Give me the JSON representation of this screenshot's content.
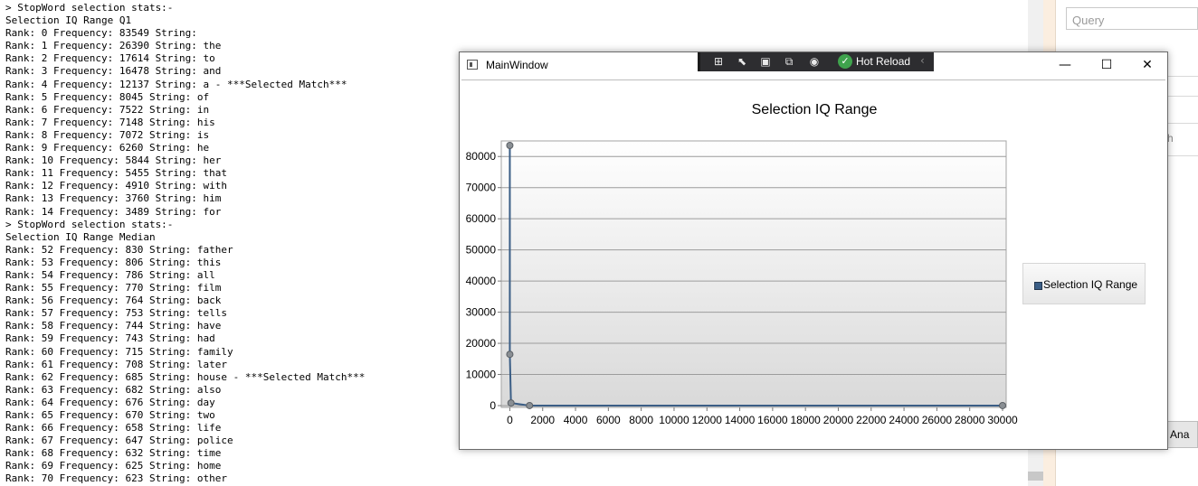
{
  "console": {
    "lines": [
      "> StopWord selection stats:-",
      "Selection IQ Range Q1",
      "Rank: 0 Frequency: 83549 String: ",
      "Rank: 1 Frequency: 26390 String: the",
      "Rank: 2 Frequency: 17614 String: to",
      "Rank: 3 Frequency: 16478 String: and",
      "Rank: 4 Frequency: 12137 String: a - ***Selected Match***",
      "Rank: 5 Frequency: 8045 String: of",
      "Rank: 6 Frequency: 7522 String: in",
      "Rank: 7 Frequency: 7148 String: his",
      "Rank: 8 Frequency: 7072 String: is",
      "Rank: 9 Frequency: 6260 String: he",
      "Rank: 10 Frequency: 5844 String: her",
      "Rank: 11 Frequency: 5455 String: that",
      "Rank: 12 Frequency: 4910 String: with",
      "Rank: 13 Frequency: 3760 String: him",
      "Rank: 14 Frequency: 3489 String: for",
      "> StopWord selection stats:-",
      "Selection IQ Range Median",
      "Rank: 52 Frequency: 830 String: father",
      "Rank: 53 Frequency: 806 String: this",
      "Rank: 54 Frequency: 786 String: all",
      "Rank: 55 Frequency: 770 String: film",
      "Rank: 56 Frequency: 764 String: back",
      "Rank: 57 Frequency: 753 String: tells",
      "Rank: 58 Frequency: 744 String: have",
      "Rank: 59 Frequency: 743 String: had",
      "Rank: 60 Frequency: 715 String: family",
      "Rank: 61 Frequency: 708 String: later",
      "Rank: 62 Frequency: 685 String: house - ***Selected Match***",
      "Rank: 63 Frequency: 682 String: also",
      "Rank: 64 Frequency: 676 String: day",
      "Rank: 65 Frequency: 670 String: two",
      "Rank: 66 Frequency: 658 String: life",
      "Rank: 67 Frequency: 647 String: police",
      "Rank: 68 Frequency: 632 String: time",
      "Rank: 69 Frequency: 625 String: home",
      "Rank: 70 Frequency: 623 String: other"
    ]
  },
  "background_app": {
    "query_placeholder": "Query",
    "fragment_1": "h",
    "button_fragment": "on Ana"
  },
  "window": {
    "title": "MainWindow",
    "hot_reload_label": "Hot Reload",
    "minimize_glyph": "—",
    "maximize_glyph": "☐",
    "close_glyph": "✕"
  },
  "chart_data": {
    "type": "line",
    "title": "Selection IQ Range",
    "xlabel": "",
    "ylabel": "",
    "xlim": [
      -300,
      30000
    ],
    "ylim": [
      0,
      85000
    ],
    "x_ticks": [
      0,
      2000,
      4000,
      6000,
      8000,
      10000,
      12000,
      14000,
      16000,
      18000,
      20000,
      22000,
      24000,
      26000,
      28000,
      30000
    ],
    "y_ticks": [
      0,
      10000,
      20000,
      30000,
      40000,
      50000,
      60000,
      70000,
      80000
    ],
    "grid": "horizontal",
    "legend_position": "right",
    "series": [
      {
        "name": "Selection IQ Range",
        "color": "#3b5e86",
        "points": [
          [
            0,
            83549
          ],
          [
            0,
            16478
          ],
          [
            70,
            830
          ],
          [
            1200,
            10
          ],
          [
            30000,
            5
          ]
        ]
      }
    ]
  }
}
